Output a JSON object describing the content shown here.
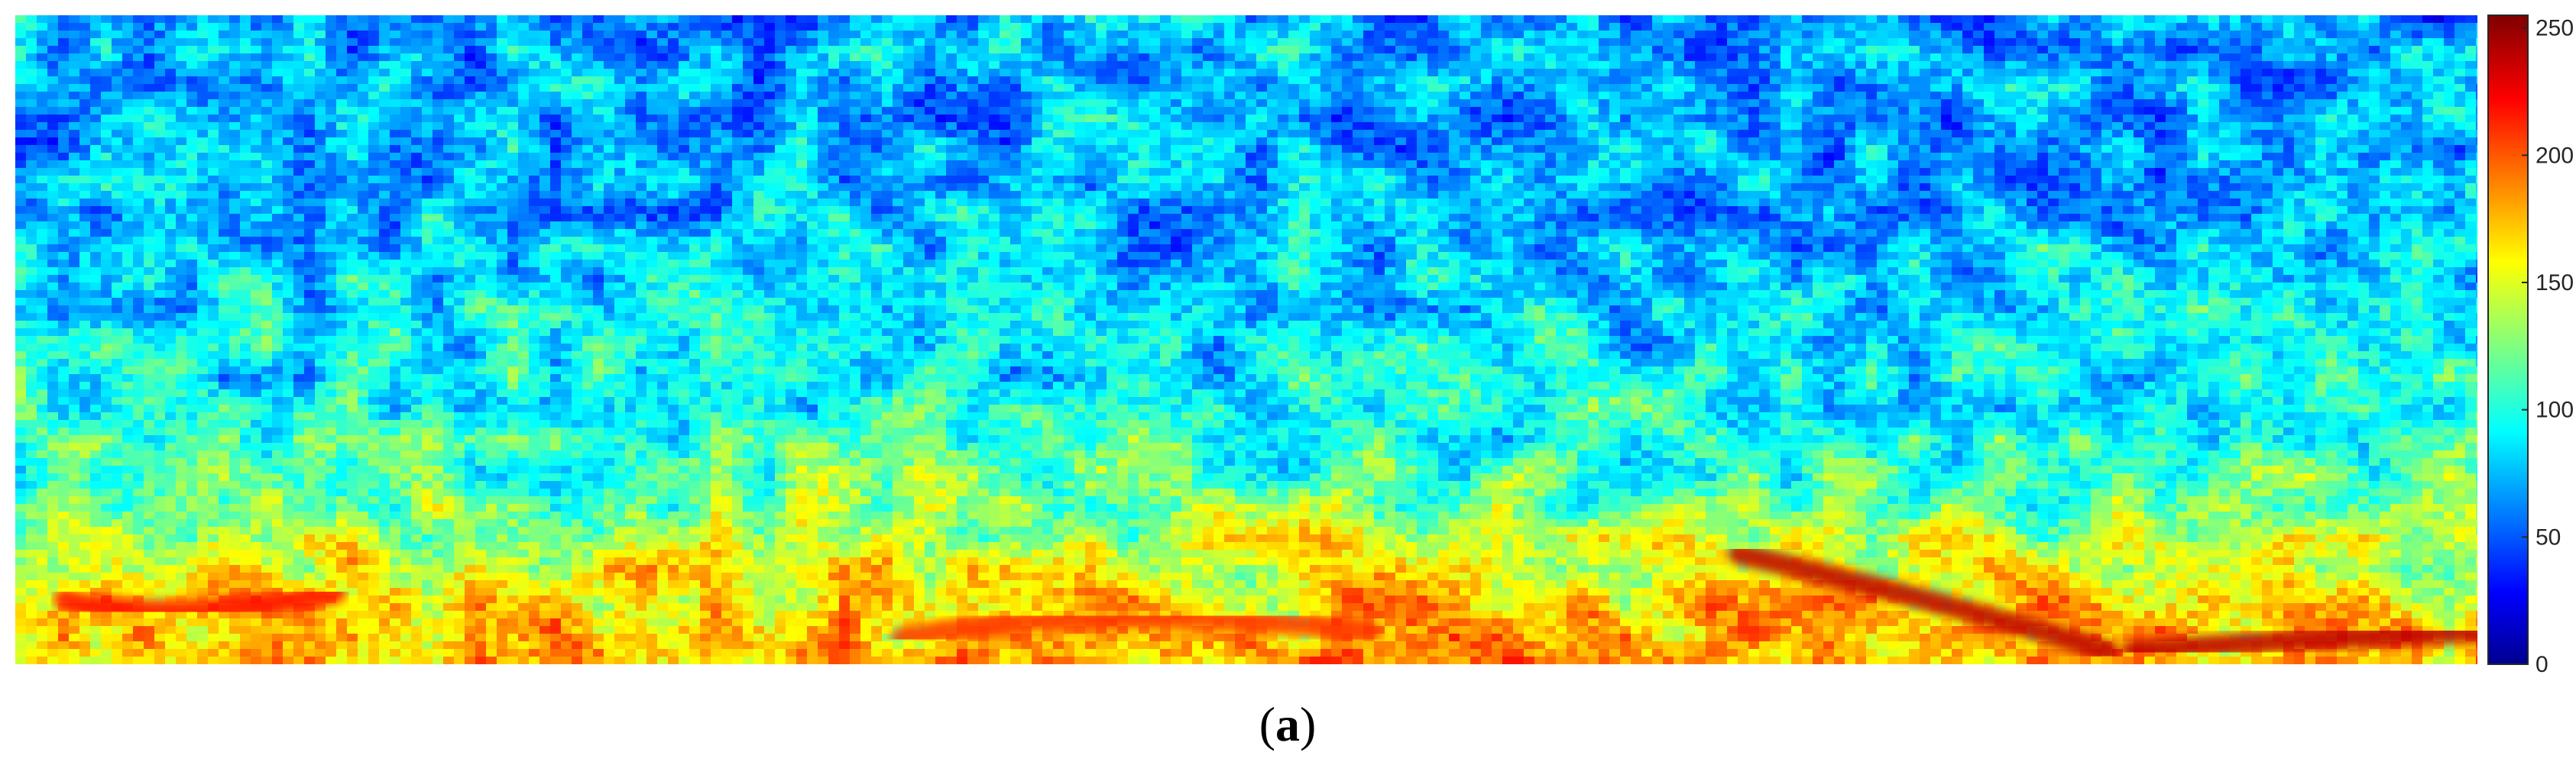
{
  "chart_data": {
    "type": "heatmap",
    "title": "",
    "xlabel": "",
    "ylabel": "",
    "colormap": "jet",
    "color_limits": [
      0,
      255
    ],
    "colorbar": {
      "ticks": [
        0,
        50,
        100,
        150,
        200,
        250
      ],
      "tick_labels": [
        "0",
        "50",
        "100",
        "150",
        "200",
        "250"
      ],
      "position": "right"
    },
    "description_of_field": {
      "rows_top_to_bottom_mean": [
        70,
        72,
        74,
        76,
        78,
        80,
        82,
        85,
        88,
        92,
        98,
        105,
        115,
        130,
        150,
        165,
        175,
        180
      ],
      "notable_high_streaks": [
        {
          "region": "bottom-left",
          "value": 220
        },
        {
          "region": "bottom-center",
          "value": 210
        },
        {
          "region": "bottom-right",
          "value": 240
        }
      ]
    }
  },
  "caption": {
    "open": "(",
    "letter": "a",
    "close": ")"
  }
}
